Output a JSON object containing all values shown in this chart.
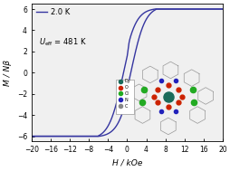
{
  "title": "",
  "xlabel": "H / kOe",
  "ylabel": "M / Nβ",
  "xlim": [
    -20,
    20
  ],
  "ylim": [
    -6.5,
    6.5
  ],
  "xticks": [
    -20,
    -16,
    -12,
    -8,
    -4,
    0,
    4,
    8,
    12,
    16,
    20
  ],
  "yticks": [
    -6,
    -4,
    -2,
    0,
    2,
    4,
    6
  ],
  "curve_color": "#3535a0",
  "legend_label": "2.0 K",
  "background_color": "#f0f0f0",
  "line_width": 1.0,
  "hex_color": "#aaaaaa",
  "dy_color": "#1a6b5a",
  "o_color": "#cc2200",
  "cl_color": "#22aa22",
  "n_color": "#2222bb",
  "c_color": "#888888"
}
